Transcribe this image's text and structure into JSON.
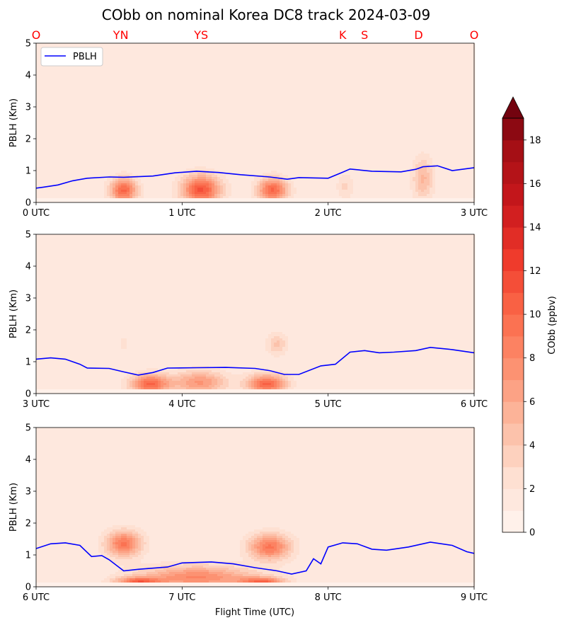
{
  "chart_data": {
    "type": "contour",
    "title": "CObb on nominal Korea DC8 track 2024-03-09",
    "xlabel": "Flight Time (UTC)",
    "ylabel": "PBLH (Km)",
    "ylim": [
      0,
      5
    ],
    "yticks": [
      "0",
      "1",
      "2",
      "3",
      "4",
      "5"
    ],
    "legend": {
      "label": "PBLH",
      "placement": "upper-left",
      "color": "#0000ff"
    },
    "site_labels": [
      {
        "label": "O",
        "x_hour": 0.0
      },
      {
        "label": "YN",
        "x_hour": 0.58
      },
      {
        "label": "YS",
        "x_hour": 1.13
      },
      {
        "label": "K",
        "x_hour": 2.1
      },
      {
        "label": "S",
        "x_hour": 2.25
      },
      {
        "label": "D",
        "x_hour": 2.62
      },
      {
        "label": "O",
        "x_hour": 3.0
      }
    ],
    "site_label_color": "#ff0000",
    "colorbar": {
      "label": "CObb (ppbv)",
      "min": 0,
      "max": 19,
      "step": 1,
      "extend": "max",
      "ticks": [
        "0",
        "2",
        "4",
        "6",
        "8",
        "10",
        "12",
        "14",
        "16",
        "18"
      ]
    },
    "panels": [
      {
        "xlim": [
          0,
          3
        ],
        "xticks": [
          "0 UTC",
          "1 UTC",
          "2 UTC",
          "3 UTC"
        ],
        "pblh": [
          [
            0,
            0.45
          ],
          [
            0.05,
            0.48
          ],
          [
            0.15,
            0.55
          ],
          [
            0.25,
            0.68
          ],
          [
            0.35,
            0.76
          ],
          [
            0.5,
            0.8
          ],
          [
            0.6,
            0.79
          ],
          [
            0.8,
            0.83
          ],
          [
            0.95,
            0.93
          ],
          [
            1.1,
            0.98
          ],
          [
            1.25,
            0.94
          ],
          [
            1.4,
            0.87
          ],
          [
            1.6,
            0.8
          ],
          [
            1.72,
            0.73
          ],
          [
            1.8,
            0.78
          ],
          [
            2.0,
            0.76
          ],
          [
            2.1,
            0.95
          ],
          [
            2.15,
            1.05
          ],
          [
            2.3,
            0.98
          ],
          [
            2.5,
            0.96
          ],
          [
            2.6,
            1.04
          ],
          [
            2.65,
            1.12
          ],
          [
            2.75,
            1.15
          ],
          [
            2.85,
            1.0
          ],
          [
            3.0,
            1.09
          ]
        ],
        "plumes": [
          {
            "x": 0.6,
            "z": 0.38,
            "rx": 0.09,
            "rz": 0.38,
            "peak": 9
          },
          {
            "x": 1.13,
            "z": 0.4,
            "rx": 0.13,
            "rz": 0.45,
            "peak": 10
          },
          {
            "x": 1.62,
            "z": 0.38,
            "rx": 0.1,
            "rz": 0.38,
            "peak": 9
          },
          {
            "x": 2.65,
            "z": 0.75,
            "rx": 0.07,
            "rz": 0.65,
            "peak": 4
          },
          {
            "x": 2.12,
            "z": 0.5,
            "rx": 0.06,
            "rz": 0.4,
            "peak": 2
          }
        ]
      },
      {
        "xlim": [
          3,
          6
        ],
        "xticks": [
          "3 UTC",
          "4 UTC",
          "5 UTC",
          "6 UTC"
        ],
        "pblh": [
          [
            3,
            1.08
          ],
          [
            3.1,
            1.12
          ],
          [
            3.2,
            1.08
          ],
          [
            3.3,
            0.92
          ],
          [
            3.35,
            0.8
          ],
          [
            3.5,
            0.79
          ],
          [
            3.6,
            0.68
          ],
          [
            3.7,
            0.58
          ],
          [
            3.8,
            0.66
          ],
          [
            3.9,
            0.8
          ],
          [
            4.1,
            0.81
          ],
          [
            4.3,
            0.82
          ],
          [
            4.5,
            0.79
          ],
          [
            4.6,
            0.72
          ],
          [
            4.7,
            0.6
          ],
          [
            4.8,
            0.6
          ],
          [
            4.95,
            0.87
          ],
          [
            5.05,
            0.92
          ],
          [
            5.15,
            1.3
          ],
          [
            5.25,
            1.35
          ],
          [
            5.35,
            1.28
          ],
          [
            5.45,
            1.3
          ],
          [
            5.6,
            1.35
          ],
          [
            5.7,
            1.45
          ],
          [
            5.85,
            1.38
          ],
          [
            6.0,
            1.28
          ]
        ],
        "plumes": [
          {
            "x": 3.78,
            "z": 0.3,
            "rx": 0.13,
            "rz": 0.3,
            "peak": 9
          },
          {
            "x": 4.12,
            "z": 0.35,
            "rx": 0.18,
            "rz": 0.35,
            "peak": 6
          },
          {
            "x": 4.58,
            "z": 0.3,
            "rx": 0.13,
            "rz": 0.3,
            "peak": 9
          },
          {
            "x": 4.65,
            "z": 1.55,
            "rx": 0.07,
            "rz": 0.35,
            "peak": 3
          },
          {
            "x": 3.6,
            "z": 1.55,
            "rx": 0.05,
            "rz": 0.4,
            "peak": 1
          }
        ]
      },
      {
        "xlim": [
          6,
          9
        ],
        "xticks": [
          "6 UTC",
          "7 UTC",
          "8 UTC",
          "9 UTC"
        ],
        "pblh": [
          [
            6,
            1.2
          ],
          [
            6.1,
            1.35
          ],
          [
            6.2,
            1.38
          ],
          [
            6.3,
            1.3
          ],
          [
            6.38,
            0.95
          ],
          [
            6.45,
            0.98
          ],
          [
            6.5,
            0.85
          ],
          [
            6.6,
            0.5
          ],
          [
            6.7,
            0.55
          ],
          [
            6.9,
            0.62
          ],
          [
            7.0,
            0.75
          ],
          [
            7.2,
            0.78
          ],
          [
            7.35,
            0.72
          ],
          [
            7.5,
            0.6
          ],
          [
            7.65,
            0.5
          ],
          [
            7.75,
            0.4
          ],
          [
            7.85,
            0.5
          ],
          [
            7.9,
            0.88
          ],
          [
            7.95,
            0.72
          ],
          [
            8.0,
            1.25
          ],
          [
            8.1,
            1.38
          ],
          [
            8.2,
            1.35
          ],
          [
            8.3,
            1.18
          ],
          [
            8.4,
            1.15
          ],
          [
            8.55,
            1.25
          ],
          [
            8.7,
            1.4
          ],
          [
            8.85,
            1.3
          ],
          [
            8.95,
            1.1
          ],
          [
            9.0,
            1.05
          ]
        ],
        "plumes": [
          {
            "x": 6.6,
            "z": 1.35,
            "rx": 0.12,
            "rz": 0.4,
            "peak": 8
          },
          {
            "x": 7.6,
            "z": 1.25,
            "rx": 0.14,
            "rz": 0.4,
            "peak": 8
          },
          {
            "x": 7.1,
            "z": 0.3,
            "rx": 0.38,
            "rz": 0.35,
            "peak": 7
          },
          {
            "x": 6.7,
            "z": 0.15,
            "rx": 0.15,
            "rz": 0.15,
            "peak": 8
          },
          {
            "x": 7.55,
            "z": 0.15,
            "rx": 0.15,
            "rz": 0.15,
            "peak": 8
          }
        ]
      }
    ]
  }
}
